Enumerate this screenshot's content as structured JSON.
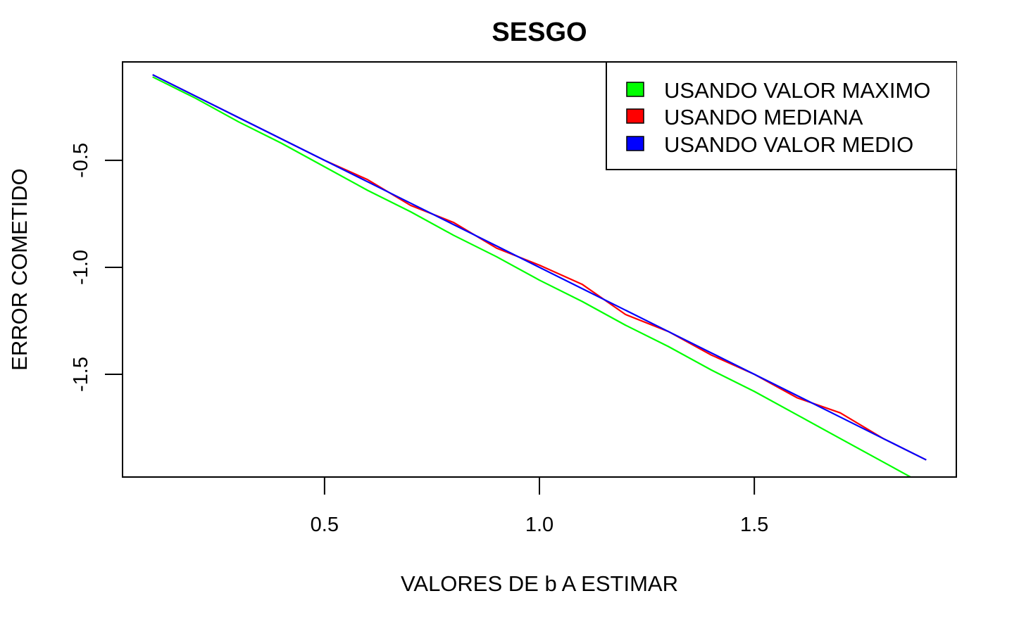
{
  "chart_data": {
    "type": "line",
    "title": "SESGO",
    "xlabel": "VALORES DE b A ESTIMAR",
    "ylabel": "ERROR COMETIDO",
    "xlim": [
      0.03,
      1.97
    ],
    "ylim": [
      -1.98,
      -0.04
    ],
    "x_ticks": [
      0.5,
      1.0,
      1.5
    ],
    "x_tick_labels": [
      "0.5",
      "1.0",
      "1.5"
    ],
    "y_ticks": [
      -0.5,
      -1.0,
      -1.5
    ],
    "y_tick_labels": [
      "-0.5",
      "-1.0",
      "-1.5"
    ],
    "grid": false,
    "legend_position": "top-right",
    "x": [
      0.1,
      0.2,
      0.3,
      0.4,
      0.5,
      0.6,
      0.7,
      0.8,
      0.9,
      1.0,
      1.1,
      1.2,
      1.3,
      1.4,
      1.5,
      1.6,
      1.7,
      1.8,
      1.9
    ],
    "series": [
      {
        "name": "USANDO VALOR MAXIMO",
        "color": "#00ff00",
        "values": [
          -0.11,
          -0.21,
          -0.32,
          -0.42,
          -0.53,
          -0.64,
          -0.74,
          -0.85,
          -0.95,
          -1.06,
          -1.16,
          -1.27,
          -1.37,
          -1.48,
          -1.58,
          -1.69,
          -1.8,
          -1.91,
          -2.02
        ]
      },
      {
        "name": "USANDO MEDIANA",
        "color": "#ff0000",
        "values": [
          -0.1,
          -0.2,
          -0.3,
          -0.4,
          -0.5,
          -0.59,
          -0.71,
          -0.79,
          -0.91,
          -0.99,
          -1.08,
          -1.22,
          -1.3,
          -1.41,
          -1.5,
          -1.61,
          -1.68,
          -1.8,
          -1.9
        ]
      },
      {
        "name": "USANDO VALOR MEDIO",
        "color": "#0000ff",
        "values": [
          -0.1,
          -0.2,
          -0.3,
          -0.4,
          -0.5,
          -0.6,
          -0.7,
          -0.8,
          -0.9,
          -1.0,
          -1.1,
          -1.2,
          -1.3,
          -1.4,
          -1.5,
          -1.6,
          -1.7,
          -1.8,
          -1.9
        ]
      }
    ]
  },
  "legend": {
    "items": [
      {
        "label": "USANDO VALOR MAXIMO",
        "color": "#00ff00"
      },
      {
        "label": "USANDO MEDIANA",
        "color": "#ff0000"
      },
      {
        "label": "USANDO VALOR MEDIO",
        "color": "#0000ff"
      }
    ]
  }
}
